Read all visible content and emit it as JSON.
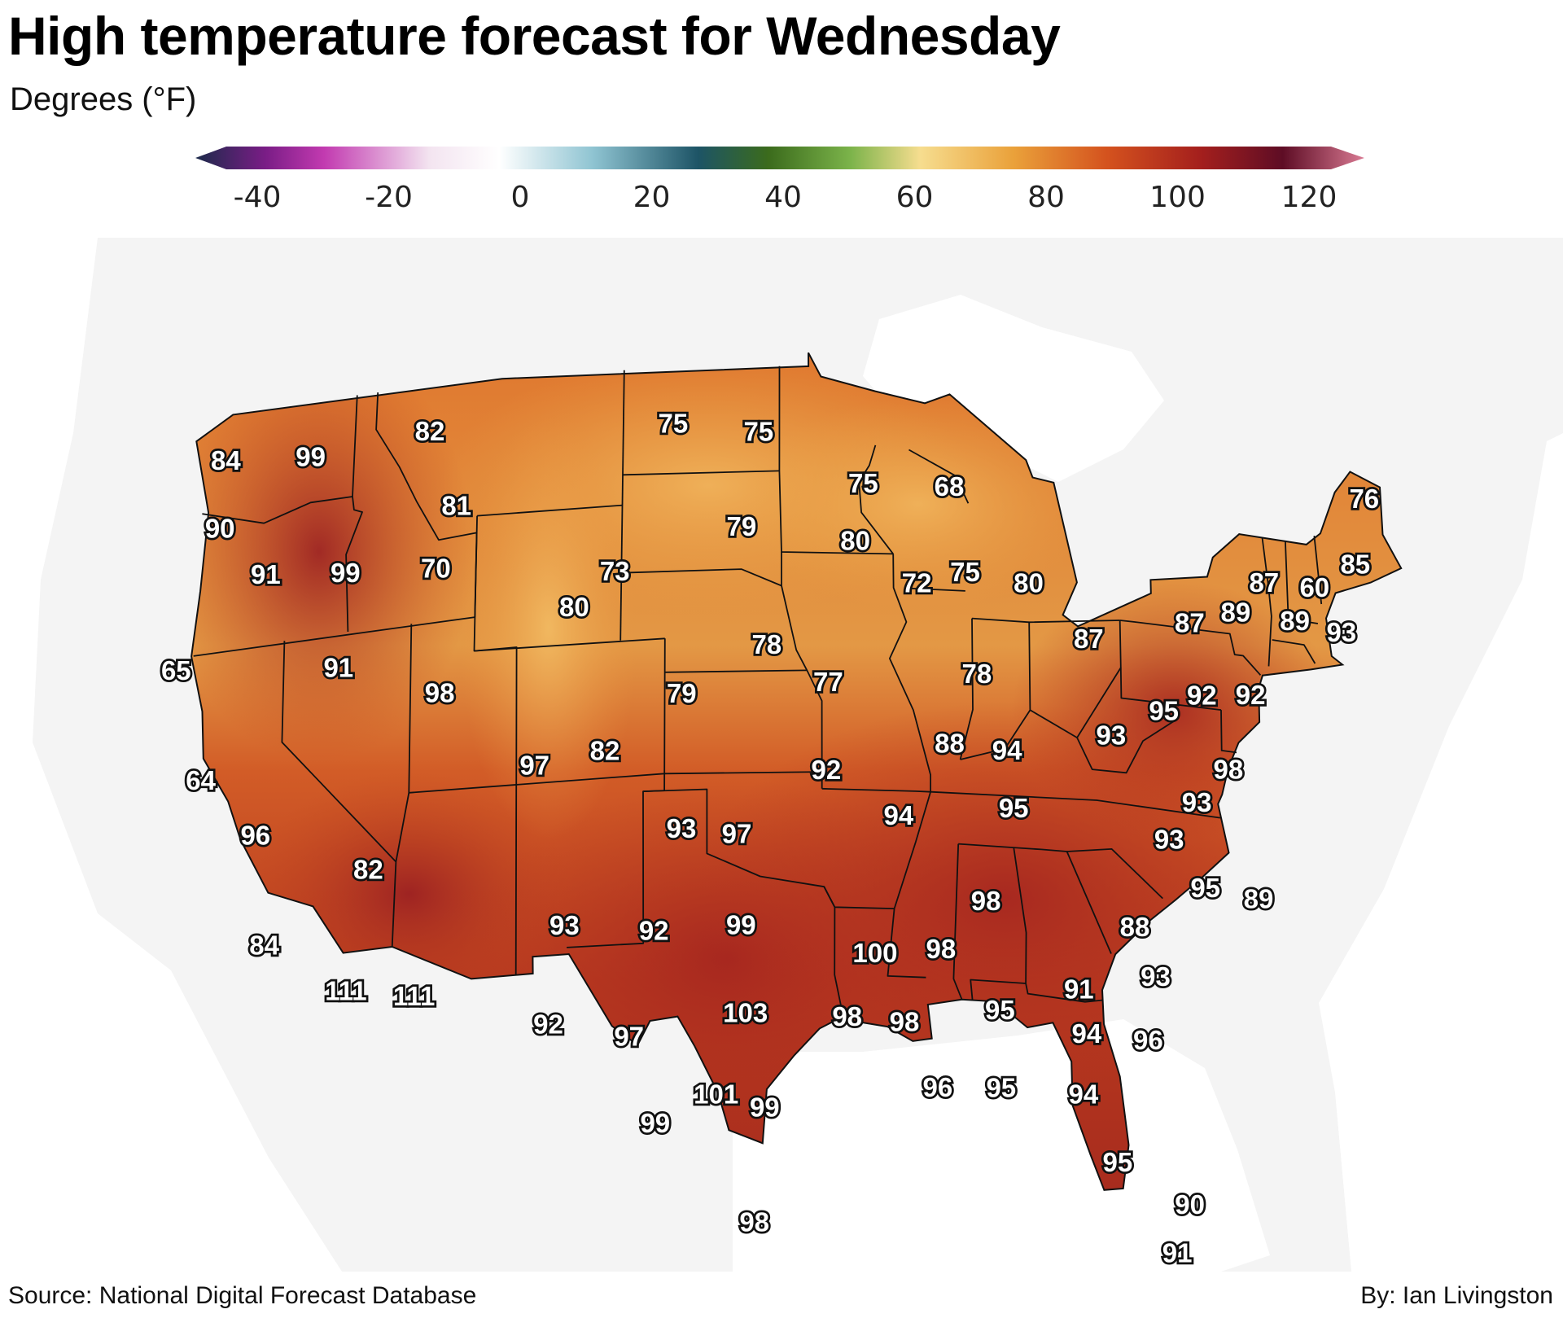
{
  "title": "High temperature forecast for Wednesday",
  "subtitle": "Degrees (°F)",
  "source": "Source: National Digital Forecast Database",
  "byline": "By: Ian Livingston",
  "legend": {
    "ticks": [
      "-40",
      "-20",
      "0",
      "20",
      "40",
      "60",
      "80",
      "100",
      "120"
    ],
    "range": [
      -40,
      120
    ],
    "colors": [
      "#1b2a4a",
      "#7a1d86",
      "#c23ab0",
      "#f3e4f0",
      "#ffffff",
      "#8fc4d2",
      "#1d5466",
      "#3b6b1c",
      "#7bb34a",
      "#f6dd8f",
      "#eaa13a",
      "#d4521e",
      "#a41f1d",
      "#5e0d25",
      "#d97a93"
    ]
  },
  "map": {
    "description_colors": {
      "ocean": "#ffffff",
      "land_outside": "#f4f4f4",
      "border": "#111111"
    },
    "labels": [
      {
        "value": "84",
        "lon": -123.2,
        "lat": 47.6
      },
      {
        "value": "99",
        "lon": -119.1,
        "lat": 47.3
      },
      {
        "value": "82",
        "lon": -113.4,
        "lat": 47.6
      },
      {
        "value": "75",
        "lon": -101.7,
        "lat": 47.3
      },
      {
        "value": "75",
        "lon": -97.6,
        "lat": 47.0
      },
      {
        "value": "76",
        "lon": -68.6,
        "lat": 46.6
      },
      {
        "value": "90",
        "lon": -123.3,
        "lat": 45.6
      },
      {
        "value": "85",
        "lon": -69.2,
        "lat": 44.6
      },
      {
        "value": "75",
        "lon": -92.6,
        "lat": 45.5
      },
      {
        "value": "68",
        "lon": -88.5,
        "lat": 45.5
      },
      {
        "value": "81",
        "lon": -112.0,
        "lat": 45.3
      },
      {
        "value": "87",
        "lon": -73.6,
        "lat": 43.6
      },
      {
        "value": "60",
        "lon": -71.2,
        "lat": 43.7
      },
      {
        "value": "91",
        "lon": -121.0,
        "lat": 44.0
      },
      {
        "value": "99",
        "lon": -117.2,
        "lat": 43.7
      },
      {
        "value": "70",
        "lon": -112.9,
        "lat": 43.5
      },
      {
        "value": "79",
        "lon": -98.4,
        "lat": 44.2
      },
      {
        "value": "80",
        "lon": -93.0,
        "lat": 43.8
      },
      {
        "value": "75",
        "lon": -87.8,
        "lat": 43.0
      },
      {
        "value": "89",
        "lon": -75.0,
        "lat": 42.6
      },
      {
        "value": "89",
        "lon": -72.2,
        "lat": 42.6
      },
      {
        "value": "93",
        "lon": -70.0,
        "lat": 42.5
      },
      {
        "value": "73",
        "lon": -104.4,
        "lat": 43.0
      },
      {
        "value": "72",
        "lon": -90.1,
        "lat": 42.6
      },
      {
        "value": "80",
        "lon": -84.8,
        "lat": 42.8
      },
      {
        "value": "87",
        "lon": -77.2,
        "lat": 42.1
      },
      {
        "value": "65",
        "lon": -125.1,
        "lat": 41.6
      },
      {
        "value": "80",
        "lon": -106.3,
        "lat": 42.0
      },
      {
        "value": "87",
        "lon": -82.0,
        "lat": 41.3
      },
      {
        "value": "91",
        "lon": -117.4,
        "lat": 40.9
      },
      {
        "value": "78",
        "lon": -97.2,
        "lat": 40.7
      },
      {
        "value": "92",
        "lon": -74.4,
        "lat": 40.2
      },
      {
        "value": "92",
        "lon": -76.7,
        "lat": 40.0
      },
      {
        "value": "78",
        "lon": -87.3,
        "lat": 40.0
      },
      {
        "value": "98",
        "lon": -112.6,
        "lat": 39.8
      },
      {
        "value": "77",
        "lon": -94.3,
        "lat": 39.6
      },
      {
        "value": "95",
        "lon": -78.5,
        "lat": 39.4
      },
      {
        "value": "79",
        "lon": -101.2,
        "lat": 39.3
      },
      {
        "value": "93",
        "lon": -81.0,
        "lat": 38.5
      },
      {
        "value": "64",
        "lon": -123.8,
        "lat": 38.2
      },
      {
        "value": "98",
        "lon": -75.5,
        "lat": 37.9
      },
      {
        "value": "82",
        "lon": -104.8,
        "lat": 37.7
      },
      {
        "value": "88",
        "lon": -88.6,
        "lat": 37.9
      },
      {
        "value": "94",
        "lon": -85.9,
        "lat": 37.8
      },
      {
        "value": "97",
        "lon": -108.1,
        "lat": 37.4
      },
      {
        "value": "92",
        "lon": -94.4,
        "lat": 37.0
      },
      {
        "value": "93",
        "lon": -77.0,
        "lat": 36.8
      },
      {
        "value": "96",
        "lon": -121.2,
        "lat": 36.3
      },
      {
        "value": "95",
        "lon": -85.6,
        "lat": 36.1
      },
      {
        "value": "94",
        "lon": -91.0,
        "lat": 35.7
      },
      {
        "value": "93",
        "lon": -78.3,
        "lat": 35.6
      },
      {
        "value": "93",
        "lon": -101.2,
        "lat": 35.3
      },
      {
        "value": "97",
        "lon": -98.6,
        "lat": 35.1
      },
      {
        "value": "82",
        "lon": -115.9,
        "lat": 34.8
      },
      {
        "value": "95",
        "lon": -76.6,
        "lat": 34.3
      },
      {
        "value": "89",
        "lon": -74.1,
        "lat": 34.2
      },
      {
        "value": "98",
        "lon": -86.9,
        "lat": 33.3
      },
      {
        "value": "88",
        "lon": -79.9,
        "lat": 32.9
      },
      {
        "value": "84",
        "lon": -120.8,
        "lat": 33.0
      },
      {
        "value": "93",
        "lon": -106.7,
        "lat": 32.6
      },
      {
        "value": "92",
        "lon": -102.5,
        "lat": 32.3
      },
      {
        "value": "99",
        "lon": -98.4,
        "lat": 32.4
      },
      {
        "value": "98",
        "lon": -89.0,
        "lat": 31.8
      },
      {
        "value": "100",
        "lon": -92.1,
        "lat": 31.6
      },
      {
        "value": "93",
        "lon": -78.9,
        "lat": 31.5
      },
      {
        "value": "111",
        "lon": -117.0,
        "lat": 31.3
      },
      {
        "value": "111",
        "lon": -113.8,
        "lat": 30.9
      },
      {
        "value": "91",
        "lon": -82.5,
        "lat": 30.9
      },
      {
        "value": "95",
        "lon": -86.2,
        "lat": 30.1
      },
      {
        "value": "94",
        "lon": -82.1,
        "lat": 29.6
      },
      {
        "value": "96",
        "lon": -79.2,
        "lat": 29.6
      },
      {
        "value": "92",
        "lon": -107.5,
        "lat": 29.7
      },
      {
        "value": "103",
        "lon": -98.2,
        "lat": 29.8
      },
      {
        "value": "98",
        "lon": -93.4,
        "lat": 29.7
      },
      {
        "value": "98",
        "lon": -90.7,
        "lat": 29.6
      },
      {
        "value": "97",
        "lon": -103.7,
        "lat": 29.2
      },
      {
        "value": "96",
        "lon": -89.1,
        "lat": 27.7
      },
      {
        "value": "95",
        "lon": -86.1,
        "lat": 27.8
      },
      {
        "value": "94",
        "lon": -82.2,
        "lat": 27.8
      },
      {
        "value": "101",
        "lon": -99.6,
        "lat": 27.4
      },
      {
        "value": "99",
        "lon": -97.3,
        "lat": 27.0
      },
      {
        "value": "99",
        "lon": -102.5,
        "lat": 26.6
      },
      {
        "value": "95",
        "lon": -80.5,
        "lat": 25.9
      },
      {
        "value": "90",
        "lon": -77.0,
        "lat": 24.9
      },
      {
        "value": "98",
        "lon": -97.8,
        "lat": 23.6
      },
      {
        "value": "91",
        "lon": -77.5,
        "lat": 23.4
      }
    ]
  }
}
